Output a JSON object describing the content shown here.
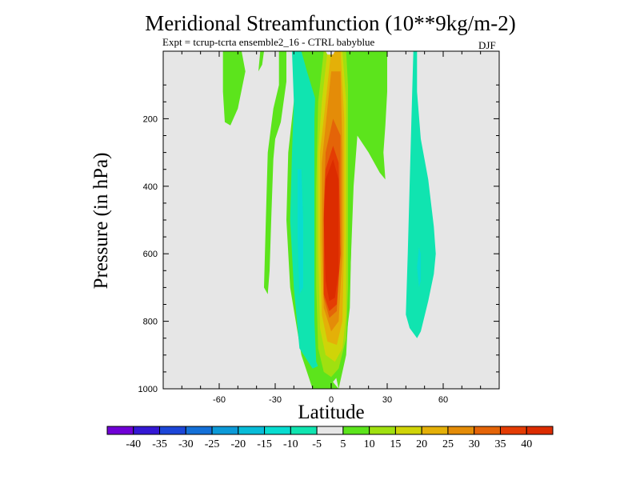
{
  "chart_data": {
    "type": "contour",
    "title": "Meridional Streamfunction (10**9kg/m-2)",
    "subtitle": "Expt = tcrup-tcrta  ensemble2_16 - CTRL babyblue",
    "season": "DJF",
    "xlabel": "Latitude",
    "ylabel": "Pressure (in hPa)",
    "xlim": [
      -90,
      90
    ],
    "ylim": [
      1000,
      0
    ],
    "xticks": [
      -60,
      -30,
      0,
      30,
      60
    ],
    "yticks": [
      200,
      400,
      600,
      800,
      1000
    ],
    "background_color": "#e6e6e6",
    "colorbar": {
      "labels": [
        "-40",
        "-35",
        "-30",
        "-25",
        "-20",
        "-15",
        "-10",
        "-5",
        "5",
        "10",
        "15",
        "20",
        "25",
        "30",
        "35",
        "40"
      ],
      "colors": [
        "#7000d6",
        "#3418d4",
        "#1c46d8",
        "#1470d8",
        "#0c9ad8",
        "#08bcd8",
        "#08dcd0",
        "#10e4b0",
        "#e6e6e6",
        "#5ce41c",
        "#a0e010",
        "#d0d408",
        "#e4b008",
        "#e48c08",
        "#e46408",
        "#e43c04",
        "#dc2c00"
      ]
    },
    "regions": [
      {
        "name": "cell-green-left-upper",
        "color": "#5ce41c",
        "points": [
          [
            -58,
            0
          ],
          [
            -48,
            0
          ],
          [
            -46,
            60
          ],
          [
            -50,
            170
          ],
          [
            -54,
            220
          ],
          [
            -57,
            210
          ],
          [
            -58,
            120
          ]
        ]
      },
      {
        "name": "cell-green-small-a",
        "color": "#5ce41c",
        "points": [
          [
            -38,
            0
          ],
          [
            -36,
            0
          ],
          [
            -37,
            40
          ],
          [
            -39,
            60
          ]
        ]
      },
      {
        "name": "cell-green-small-b",
        "color": "#5ce41c",
        "points": [
          [
            -28,
            0
          ],
          [
            -24,
            0
          ],
          [
            -24,
            90
          ],
          [
            -27,
            210
          ],
          [
            -30,
            260
          ],
          [
            -31,
            320
          ],
          [
            -32,
            480
          ],
          [
            -33,
            650
          ],
          [
            -34,
            720
          ],
          [
            -36,
            700
          ],
          [
            -35,
            500
          ],
          [
            -34,
            300
          ],
          [
            -31,
            170
          ],
          [
            -28,
            100
          ]
        ]
      },
      {
        "name": "cell-green-left-stripe",
        "color": "#5ce41c",
        "points": [
          [
            -18,
            0
          ],
          [
            -5,
            0
          ],
          [
            -4,
            40
          ],
          [
            -3,
            200
          ],
          [
            -2,
            500
          ],
          [
            -2,
            800
          ],
          [
            1,
            980
          ],
          [
            4,
            1000
          ],
          [
            -10,
            1000
          ],
          [
            -16,
            900
          ],
          [
            -22,
            700
          ],
          [
            -24,
            500
          ],
          [
            -23,
            300
          ],
          [
            -20,
            150
          ]
        ]
      },
      {
        "name": "cell-teal-left",
        "color": "#10e4b0",
        "points": [
          [
            -21,
            0
          ],
          [
            -16,
            0
          ],
          [
            -13,
            60
          ],
          [
            -8,
            150
          ],
          [
            -6,
            300
          ],
          [
            -5,
            600
          ],
          [
            -4,
            800
          ],
          [
            -2,
            920
          ],
          [
            -10,
            940
          ],
          [
            -17,
            880
          ],
          [
            -20,
            700
          ],
          [
            -22,
            500
          ],
          [
            -21,
            300
          ],
          [
            -20,
            150
          ]
        ]
      },
      {
        "name": "cell-cyan-left-core",
        "color": "#08dcd0",
        "points": [
          [
            -18,
            350
          ],
          [
            -16,
            350
          ],
          [
            -15,
            500
          ],
          [
            -15,
            700
          ],
          [
            -17,
            720
          ],
          [
            -18,
            550
          ]
        ]
      },
      {
        "name": "cell-green-mid",
        "color": "#5ce41c",
        "points": [
          [
            4,
            0
          ],
          [
            30,
            0
          ],
          [
            30,
            60
          ],
          [
            30,
            120
          ],
          [
            29,
            220
          ],
          [
            28,
            300
          ],
          [
            29,
            380
          ],
          [
            26,
            360
          ],
          [
            20,
            300
          ],
          [
            14,
            250
          ],
          [
            12,
            400
          ],
          [
            10,
            700
          ],
          [
            8,
            900
          ],
          [
            4,
            1000
          ],
          [
            0,
            900
          ],
          [
            2,
            500
          ],
          [
            3,
            200
          ]
        ]
      },
      {
        "name": "cell-green-outer",
        "color": "#5ce41c",
        "points": [
          [
            -8,
            40
          ],
          [
            -5,
            0
          ],
          [
            10,
            0
          ],
          [
            12,
            60
          ],
          [
            13,
            250
          ],
          [
            11,
            500
          ],
          [
            10,
            760
          ],
          [
            7,
            900
          ],
          [
            4,
            960
          ],
          [
            0,
            985
          ],
          [
            -4,
            975
          ],
          [
            -8,
            920
          ],
          [
            -9,
            800
          ],
          [
            -9,
            600
          ],
          [
            -9,
            400
          ],
          [
            -9,
            200
          ]
        ]
      },
      {
        "name": "cell-yellowgreen",
        "color": "#a0e010",
        "points": [
          [
            -7,
            150
          ],
          [
            -4,
            0
          ],
          [
            8,
            0
          ],
          [
            9,
            100
          ],
          [
            9,
            400
          ],
          [
            9,
            700
          ],
          [
            8,
            850
          ],
          [
            4,
            940
          ],
          [
            0,
            965
          ],
          [
            -4,
            950
          ],
          [
            -7,
            880
          ],
          [
            -8,
            700
          ],
          [
            -8,
            400
          ]
        ]
      },
      {
        "name": "cell-yellow",
        "color": "#d0d408",
        "points": [
          [
            -5,
            150
          ],
          [
            -2,
            0
          ],
          [
            6,
            0
          ],
          [
            8,
            150
          ],
          [
            8,
            500
          ],
          [
            8,
            780
          ],
          [
            6,
            880
          ],
          [
            2,
            920
          ],
          [
            -3,
            900
          ],
          [
            -6,
            820
          ],
          [
            -7,
            600
          ],
          [
            -7,
            300
          ]
        ]
      },
      {
        "name": "cell-gold",
        "color": "#e4b008",
        "points": [
          [
            -4,
            200
          ],
          [
            0,
            0
          ],
          [
            5,
            0
          ],
          [
            7,
            200
          ],
          [
            7,
            550
          ],
          [
            6,
            800
          ],
          [
            3,
            870
          ],
          [
            -2,
            860
          ],
          [
            -5,
            780
          ],
          [
            -6,
            550
          ],
          [
            -6,
            300
          ]
        ]
      },
      {
        "name": "cell-orange",
        "color": "#e48c08",
        "points": [
          [
            -3,
            220
          ],
          [
            0,
            60
          ],
          [
            5,
            60
          ],
          [
            6,
            300
          ],
          [
            6,
            600
          ],
          [
            4,
            800
          ],
          [
            0,
            830
          ],
          [
            -4,
            760
          ],
          [
            -5,
            560
          ],
          [
            -5,
            330
          ]
        ]
      },
      {
        "name": "cell-orange-dark",
        "color": "#e46408",
        "points": [
          [
            -3,
            300
          ],
          [
            1,
            200
          ],
          [
            5,
            250
          ],
          [
            5,
            550
          ],
          [
            3,
            770
          ],
          [
            -1,
            790
          ],
          [
            -4,
            730
          ],
          [
            -4,
            450
          ]
        ]
      },
      {
        "name": "cell-red-orange",
        "color": "#e43c04",
        "points": [
          [
            -3,
            350
          ],
          [
            1,
            280
          ],
          [
            4,
            330
          ],
          [
            5,
            600
          ],
          [
            3,
            750
          ],
          [
            -1,
            770
          ],
          [
            -4,
            720
          ],
          [
            -4,
            480
          ]
        ]
      },
      {
        "name": "cell-red-core",
        "color": "#dc2c00",
        "points": [
          [
            -3,
            380
          ],
          [
            1,
            320
          ],
          [
            4,
            380
          ],
          [
            4,
            650
          ],
          [
            2,
            730
          ],
          [
            -1,
            740
          ],
          [
            -3,
            680
          ],
          [
            -4,
            500
          ]
        ]
      },
      {
        "name": "cell-white-top",
        "color": "#e6e6e6",
        "points": [
          [
            -3,
            0
          ],
          [
            2,
            0
          ],
          [
            1,
            10
          ],
          [
            -2,
            10
          ]
        ]
      },
      {
        "name": "cell-teal-right",
        "color": "#10e4b0",
        "points": [
          [
            44,
            0
          ],
          [
            46,
            0
          ],
          [
            46,
            120
          ],
          [
            48,
            260
          ],
          [
            52,
            380
          ],
          [
            55,
            520
          ],
          [
            56,
            600
          ],
          [
            55,
            660
          ],
          [
            52,
            740
          ],
          [
            48,
            830
          ],
          [
            46,
            850
          ],
          [
            42,
            820
          ],
          [
            40,
            780
          ],
          [
            41,
            600
          ],
          [
            42,
            400
          ],
          [
            43,
            200
          ]
        ]
      },
      {
        "name": "cell-cyan-right-core",
        "color": "#08dcd0",
        "points": [
          [
            47,
            580
          ],
          [
            48,
            600
          ],
          [
            48,
            680
          ],
          [
            47,
            700
          ],
          [
            46,
            640
          ]
        ]
      }
    ]
  }
}
